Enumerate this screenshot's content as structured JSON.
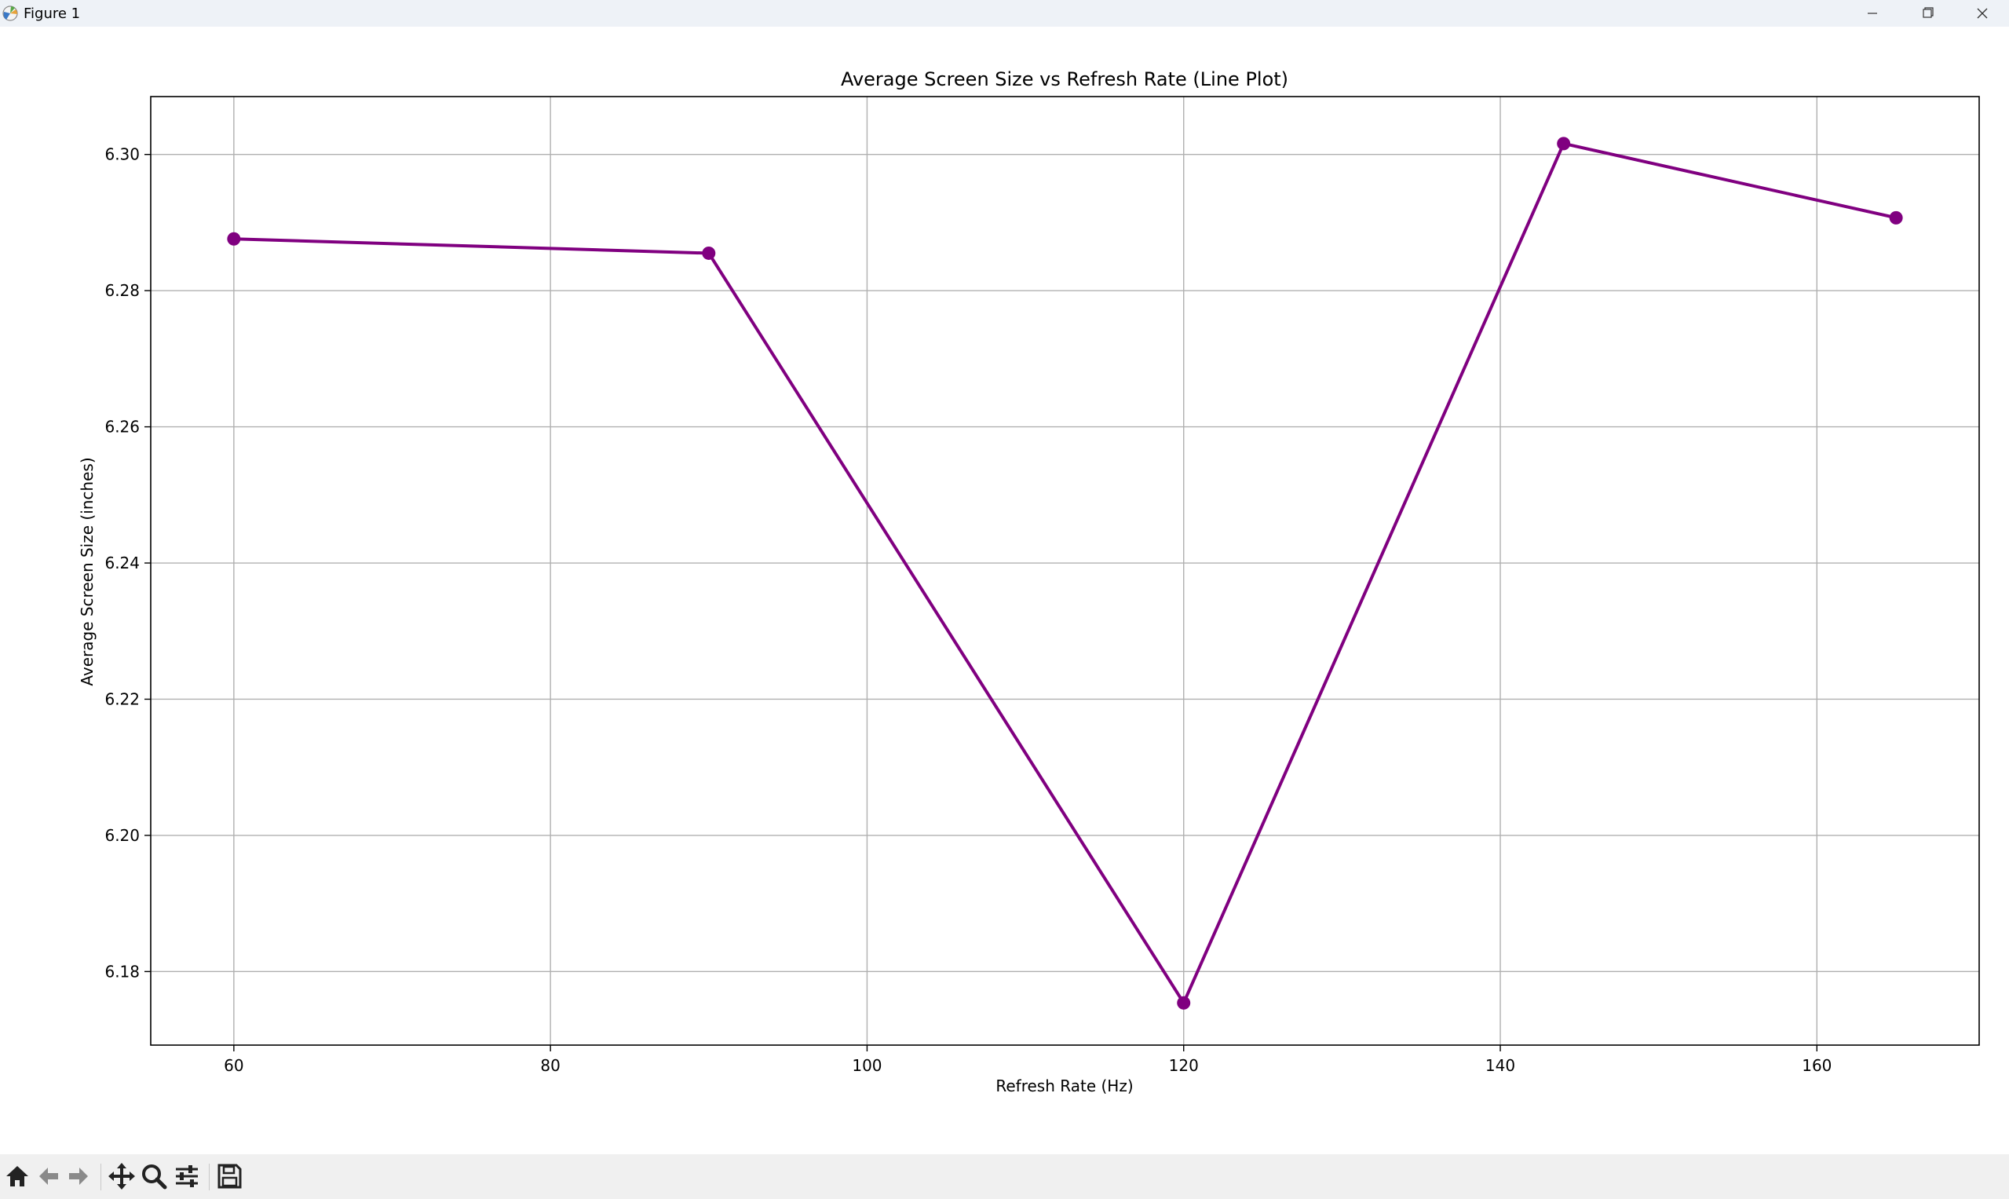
{
  "window": {
    "title": "Figure 1"
  },
  "colors": {
    "series": "#800080",
    "grid": "#b0b0b0",
    "axes": "#000000",
    "titlebar": "#eef2f7",
    "toolbar": "#f0f0f0"
  },
  "toolbar": {
    "icons": [
      "home-icon",
      "back-arrow-icon",
      "forward-arrow-icon",
      "pan-icon",
      "zoom-icon",
      "configure-subplots-icon",
      "save-icon"
    ]
  },
  "chart_data": {
    "type": "line",
    "title": "Average Screen Size vs Refresh Rate (Line Plot)",
    "xlabel": "Refresh Rate (Hz)",
    "ylabel": "Average Screen Size (inches)",
    "x": [
      60,
      90,
      120,
      144,
      165
    ],
    "series": [
      {
        "values": [
          6.2876,
          6.2855,
          6.1754,
          6.3016,
          6.2907
        ]
      }
    ],
    "xlim": [
      54.75,
      170.25
    ],
    "ylim": [
      6.1692,
      6.3085
    ],
    "xticks": [
      60,
      80,
      100,
      120,
      140,
      160
    ],
    "yticks": [
      6.18,
      6.2,
      6.22,
      6.24,
      6.26,
      6.28,
      6.3
    ],
    "ytick_labels": [
      "6.18",
      "6.20",
      "6.22",
      "6.24",
      "6.26",
      "6.28",
      "6.30"
    ],
    "grid": true,
    "marker": "circle"
  }
}
